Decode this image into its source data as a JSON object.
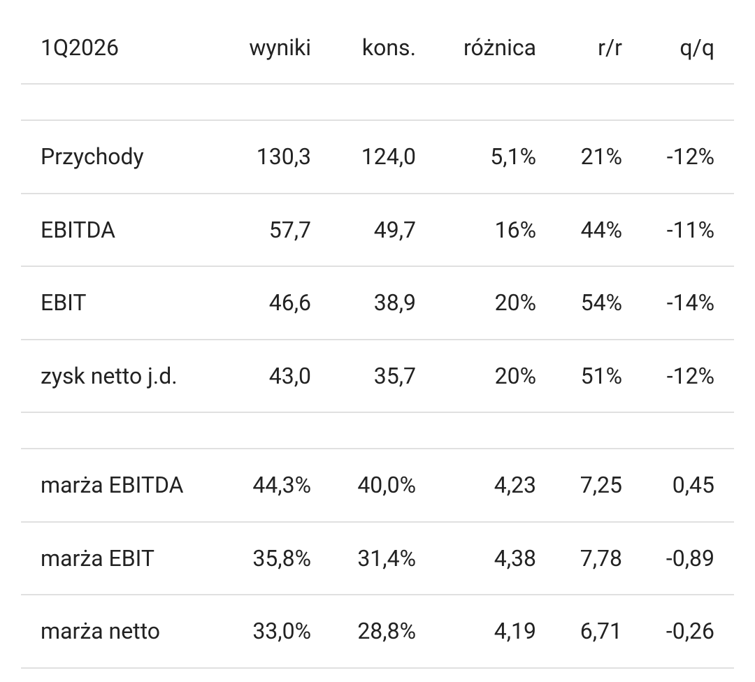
{
  "table": {
    "columns": [
      "1Q2026",
      "wyniki",
      "kons.",
      "różnica",
      "r/r",
      "q/q"
    ],
    "groups": [
      [
        [
          "Przychody",
          "130,3",
          "124,0",
          "5,1%",
          "21%",
          "-12%"
        ],
        [
          "EBITDA",
          "57,7",
          "49,7",
          "16%",
          "44%",
          "-11%"
        ],
        [
          "EBIT",
          "46,6",
          "38,9",
          "20%",
          "54%",
          "-14%"
        ],
        [
          "zysk netto j.d.",
          "43,0",
          "35,7",
          "20%",
          "51%",
          "-12%"
        ]
      ],
      [
        [
          "marża EBITDA",
          "44,3%",
          "40,0%",
          "4,23",
          "7,25",
          "0,45"
        ],
        [
          "marża EBIT",
          "35,8%",
          "31,4%",
          "4,38",
          "7,78",
          "-0,89"
        ],
        [
          "marża netto",
          "33,0%",
          "28,8%",
          "4,19",
          "6,71",
          "-0,26"
        ]
      ]
    ]
  }
}
